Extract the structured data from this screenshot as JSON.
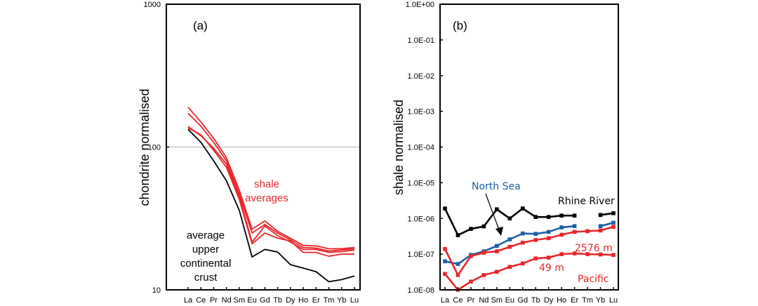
{
  "chart_data": [
    {
      "type": "line",
      "panel_label": "(a)",
      "title": "",
      "xlabel": "",
      "ylabel": "chondrite normalised",
      "yscale": "log",
      "ylim": [
        10,
        1000
      ],
      "yticks": [
        "10",
        "100",
        "1000"
      ],
      "grid": "horizontal line at 100",
      "categories": [
        "La",
        "Ce",
        "Pr",
        "Nd",
        "Sm",
        "Eu",
        "Gd",
        "Tb",
        "Dy",
        "Ho",
        "Er",
        "Tm",
        "Yb",
        "Lu"
      ],
      "annotations": [
        {
          "text_lines": [
            "shale",
            "averages"
          ],
          "color": "#e8262b"
        },
        {
          "text_lines": [
            "average",
            "upper",
            "continental",
            "crust"
          ],
          "color": "#000000"
        }
      ],
      "series": [
        {
          "name": "shale average 1",
          "color": "#e8262b",
          "markers": false,
          "values": [
            190,
            150,
            115,
            84,
            50,
            26.6,
            30.4,
            25.7,
            23,
            20.5,
            20.3,
            19.4,
            19.4,
            19.8
          ]
        },
        {
          "name": "shale average 2",
          "color": "#e8262b",
          "markers": false,
          "values": [
            172,
            140,
            108,
            80,
            47,
            25,
            28.7,
            25,
            22.4,
            19.8,
            19.6,
            18.7,
            19,
            19.4
          ]
        },
        {
          "name": "shale average 3",
          "color": "#e8262b",
          "markers": false,
          "values": [
            139,
            120,
            98,
            76,
            45,
            21.6,
            28,
            24,
            21.6,
            19.2,
            19.2,
            18.3,
            18.5,
            19
          ]
        },
        {
          "name": "shale average 4",
          "color": "#e8262b",
          "markers": false,
          "values": [
            136,
            122,
            95,
            72,
            43,
            21,
            25,
            23,
            22,
            18.3,
            18.3,
            17.2,
            17.8,
            17.8
          ]
        },
        {
          "name": "average upper continental crust",
          "color": "#000000",
          "markers": false,
          "values": [
            133,
            108,
            80,
            58,
            36,
            17,
            19.2,
            18.4,
            15,
            14.2,
            13.4,
            11.4,
            11.8,
            12.5
          ]
        }
      ]
    },
    {
      "type": "line",
      "panel_label": "(b)",
      "title": "",
      "xlabel": "",
      "ylabel": "shale normalised",
      "yscale": "log",
      "ylim": [
        1e-08,
        1
      ],
      "yticks": [
        "1.0E-08",
        "1.0E-07",
        "1.0E-06",
        "1.0E-05",
        "1.0E-04",
        "1.0E-03",
        "1.0E-02",
        "1.0E-01",
        "1.0E+00"
      ],
      "grid": "off",
      "categories": [
        "La",
        "Ce",
        "Pr",
        "Nd",
        "Sm",
        "Eu",
        "Gd",
        "Tb",
        "Dy",
        "Ho",
        "Er",
        "Tm",
        "Yb",
        "Lu"
      ],
      "annotations": [
        {
          "text": "North Sea",
          "color": "#1d5fa8",
          "arrow": true
        },
        {
          "text": "Rhine River",
          "color": "#000000"
        },
        {
          "text": "2576 m",
          "color": "#e8262b"
        },
        {
          "text": "49 m",
          "color": "#e8262b"
        },
        {
          "text": "Pacific",
          "color": "#e8262b"
        }
      ],
      "series": [
        {
          "name": "Rhine River",
          "color": "#000000",
          "markers": true,
          "values": [
            1.9e-06,
            3.4e-07,
            5.1e-07,
            6e-07,
            1.8e-06,
            1e-06,
            1.9e-06,
            1.1e-06,
            1.1e-06,
            1.2e-06,
            1.2e-06,
            null,
            1.25e-06,
            1.4e-06
          ]
        },
        {
          "name": "North Sea",
          "color": "#1d5fa8",
          "markers": true,
          "values": [
            6.3e-08,
            5.3e-08,
            9.5e-08,
            1.2e-07,
            1.7e-07,
            2.6e-07,
            3.8e-07,
            3.7e-07,
            4.2e-07,
            5.6e-07,
            6.1e-07,
            null,
            6.1e-07,
            7.6e-07
          ]
        },
        {
          "name": "Pacific 2576 m",
          "color": "#e8262b",
          "markers": true,
          "values": [
            1.4e-07,
            2.6e-08,
            8.8e-08,
            1.1e-07,
            1.2e-07,
            1.6e-07,
            2.1e-07,
            2.5e-07,
            2.8e-07,
            3.5e-07,
            4.2e-07,
            4.4e-07,
            4.6e-07,
            5.8e-07
          ]
        },
        {
          "name": "Pacific 49 m",
          "color": "#e8262b",
          "markers": true,
          "values": [
            2.8e-08,
            1e-08,
            1.7e-08,
            2.6e-08,
            3.2e-08,
            4.4e-08,
            5.5e-08,
            7.6e-08,
            8e-08,
            1e-07,
            1.05e-07,
            1e-07,
            9.8e-08,
            9.5e-08
          ]
        }
      ]
    }
  ]
}
